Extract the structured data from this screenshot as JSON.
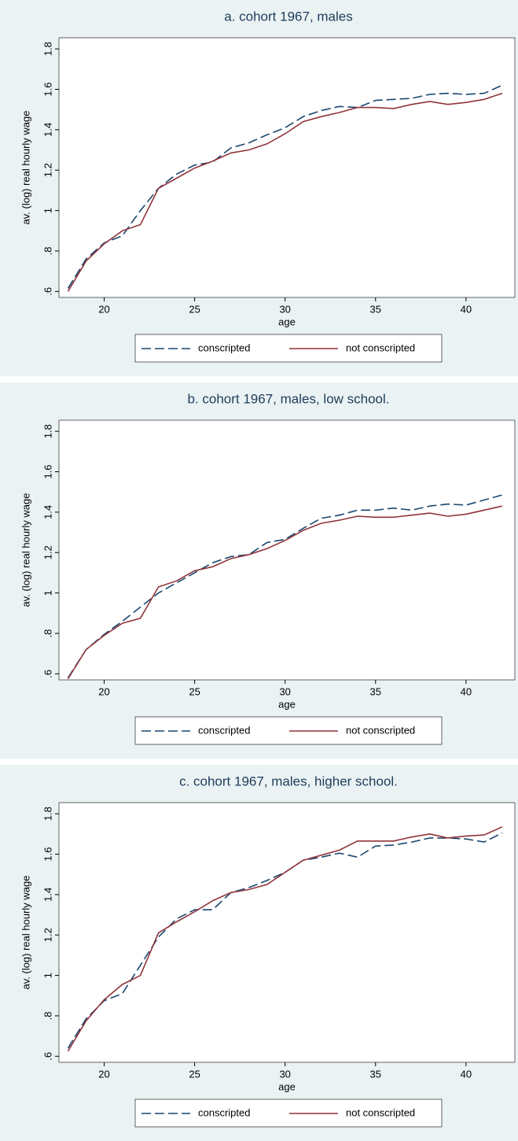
{
  "chart_data": [
    {
      "type": "line",
      "title": "a. cohort 1967, males",
      "x_label": "age",
      "y_label": "av. (log) real hourly wage",
      "x": [
        18,
        19,
        20,
        21,
        22,
        23,
        24,
        25,
        26,
        27,
        28,
        29,
        30,
        31,
        32,
        33,
        34,
        35,
        36,
        37,
        38,
        39,
        40,
        41,
        42
      ],
      "series": [
        {
          "name": "conscripted",
          "color": "#1a476f",
          "dash": true,
          "values": [
            0.615,
            0.76,
            0.84,
            0.875,
            1.0,
            1.11,
            1.18,
            1.225,
            1.24,
            1.31,
            1.335,
            1.375,
            1.41,
            1.465,
            1.495,
            1.515,
            1.51,
            1.545,
            1.55,
            1.555,
            1.575,
            1.58,
            1.575,
            1.58,
            1.62
          ]
        },
        {
          "name": "not conscripted",
          "color": "#90353b",
          "dash": false,
          "values": [
            0.6,
            0.75,
            0.835,
            0.9,
            0.93,
            1.11,
            1.16,
            1.21,
            1.245,
            1.285,
            1.3,
            1.33,
            1.38,
            1.44,
            1.465,
            1.485,
            1.51,
            1.51,
            1.505,
            1.525,
            1.54,
            1.525,
            1.535,
            1.55,
            1.58
          ]
        }
      ],
      "xlim": [
        17.5,
        42.7
      ],
      "xticks": [
        20,
        25,
        30,
        35,
        40
      ],
      "ylim": [
        0.57,
        1.855
      ],
      "yticks": [
        {
          "value": 0.6,
          "label": ".6"
        },
        {
          "value": 0.8,
          "label": ".8"
        },
        1,
        1.2,
        1.4,
        1.6,
        1.8
      ]
    },
    {
      "type": "line",
      "title": "b. cohort 1967, males, low school.",
      "x_label": "age",
      "y_label": "av. (log) real hourly wage",
      "x": [
        18,
        19,
        20,
        21,
        22,
        23,
        24,
        25,
        26,
        27,
        28,
        29,
        30,
        31,
        32,
        33,
        34,
        35,
        36,
        37,
        38,
        39,
        40,
        41,
        42
      ],
      "series": [
        {
          "name": "conscripted",
          "color": "#1a476f",
          "dash": true,
          "values": [
            0.58,
            0.72,
            0.795,
            0.86,
            0.93,
            1.0,
            1.05,
            1.1,
            1.15,
            1.18,
            1.19,
            1.25,
            1.265,
            1.32,
            1.37,
            1.385,
            1.41,
            1.41,
            1.42,
            1.41,
            1.43,
            1.44,
            1.435,
            1.46,
            1.485
          ]
        },
        {
          "name": "not conscripted",
          "color": "#90353b",
          "dash": false,
          "values": [
            0.575,
            0.72,
            0.79,
            0.85,
            0.875,
            1.03,
            1.06,
            1.11,
            1.13,
            1.17,
            1.19,
            1.22,
            1.26,
            1.31,
            1.345,
            1.36,
            1.38,
            1.375,
            1.375,
            1.385,
            1.395,
            1.38,
            1.39,
            1.41,
            1.43
          ]
        }
      ],
      "xlim": [
        17.5,
        42.7
      ],
      "xticks": [
        20,
        25,
        30,
        35,
        40
      ],
      "ylim": [
        0.57,
        1.855
      ],
      "yticks": [
        {
          "value": 0.6,
          "label": ".6"
        },
        {
          "value": 0.8,
          "label": ".8"
        },
        1,
        1.2,
        1.4,
        1.6,
        1.8
      ]
    },
    {
      "type": "line",
      "title": "c. cohort 1967, males, higher school.",
      "x_label": "age",
      "y_label": "av. (log) real hourly wage",
      "x": [
        18,
        19,
        20,
        21,
        22,
        23,
        24,
        25,
        26,
        27,
        28,
        29,
        30,
        31,
        32,
        33,
        34,
        35,
        36,
        37,
        38,
        39,
        40,
        41,
        42
      ],
      "series": [
        {
          "name": "conscripted",
          "color": "#1a476f",
          "dash": true,
          "values": [
            0.64,
            0.785,
            0.875,
            0.91,
            1.05,
            1.19,
            1.28,
            1.325,
            1.325,
            1.41,
            1.435,
            1.47,
            1.51,
            1.57,
            1.585,
            1.605,
            1.585,
            1.64,
            1.645,
            1.66,
            1.68,
            1.68,
            1.675,
            1.66,
            1.705
          ]
        },
        {
          "name": "not conscripted",
          "color": "#90353b",
          "dash": false,
          "values": [
            0.625,
            0.775,
            0.88,
            0.955,
            1.0,
            1.21,
            1.265,
            1.315,
            1.37,
            1.41,
            1.425,
            1.45,
            1.51,
            1.57,
            1.595,
            1.62,
            1.665,
            1.665,
            1.665,
            1.685,
            1.7,
            1.68,
            1.69,
            1.695,
            1.735
          ]
        }
      ],
      "xlim": [
        17.5,
        42.7
      ],
      "xticks": [
        20,
        25,
        30,
        35,
        40
      ],
      "ylim": [
        0.57,
        1.855
      ],
      "yticks": [
        {
          "value": 0.6,
          "label": ".6"
        },
        {
          "value": 0.8,
          "label": ".8"
        },
        1,
        1.2,
        1.4,
        1.6,
        1.8
      ]
    }
  ]
}
